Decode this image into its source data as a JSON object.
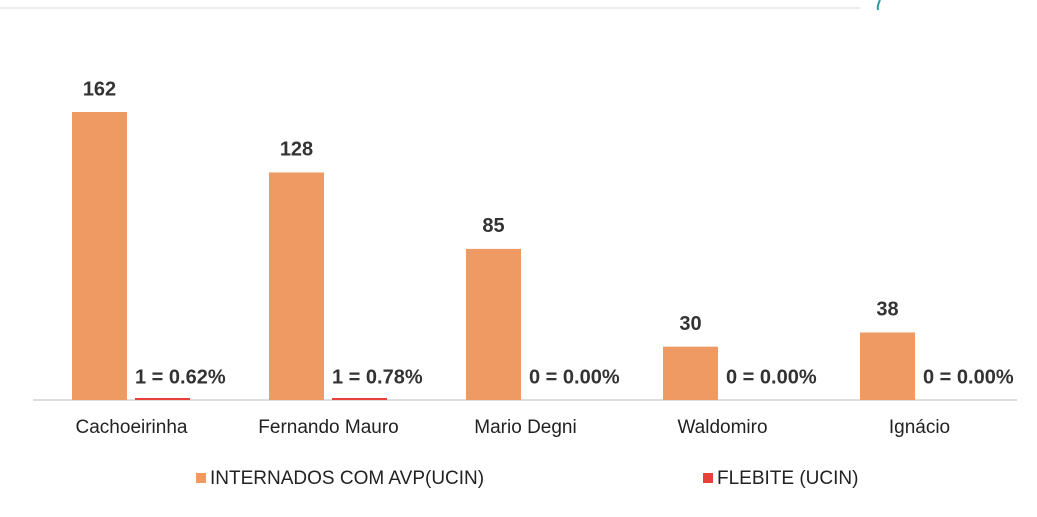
{
  "chart_data": {
    "type": "bar",
    "categories": [
      "Cachoeirinha",
      "Fernando Mauro",
      "Mario Degni",
      "Waldomiro",
      "Ignácio"
    ],
    "series": [
      {
        "name": "INTERNADOS COM AVP(UCIN)",
        "color": "#ee9a62",
        "values": [
          162,
          128,
          85,
          30,
          38
        ]
      },
      {
        "name": "FLEBITE (UCIN)",
        "color": "#e8413a",
        "values": [
          1,
          1,
          0,
          0,
          0
        ],
        "value_labels": [
          "1 = 0.62%",
          "1 = 0.78%",
          "0 = 0.00%",
          "0 = 0.00%",
          "0 = 0.00%"
        ]
      }
    ],
    "legend": "bottom"
  }
}
